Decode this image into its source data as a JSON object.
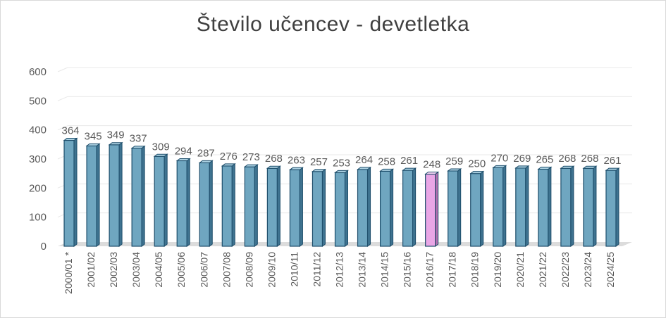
{
  "chart_data": {
    "type": "bar",
    "title": "Število učencev - devetletka",
    "xlabel": "",
    "ylabel": "",
    "ylim": [
      0,
      600
    ],
    "yticks": [
      0,
      100,
      200,
      300,
      400,
      500,
      600
    ],
    "grid": true,
    "legend": "none",
    "categories": [
      "2000/01 *",
      "2001/02",
      "2002/03",
      "2003/04",
      "2004/05",
      "2005/06",
      "2006/07",
      "2007/08",
      "2008/09",
      "2009/10",
      "2010/11",
      "2011/12",
      "2012/13",
      "2013/14",
      "2014/15",
      "2015/16",
      "2016/17",
      "2017/18",
      "2018/19",
      "2019/20",
      "2020/21",
      "2021/22",
      "2022/23",
      "2023/24",
      "2024/25"
    ],
    "values": [
      364,
      345,
      349,
      337,
      309,
      294,
      287,
      276,
      273,
      268,
      263,
      257,
      253,
      264,
      258,
      261,
      248,
      259,
      250,
      270,
      269,
      265,
      268,
      268,
      261
    ],
    "highlight_category": "2016/17",
    "colors": {
      "bar_front": "#6fa6c0",
      "bar_side": "#3f7390",
      "bar_top": "#a9cfe0",
      "bar_edge": "#1e4e6b",
      "highlight_front": "#e9a6e6",
      "highlight_side": "#b26fb0",
      "highlight_top": "#f5d2f3",
      "grid": "#e8e8e8",
      "floor": "#dcdcdc"
    }
  }
}
